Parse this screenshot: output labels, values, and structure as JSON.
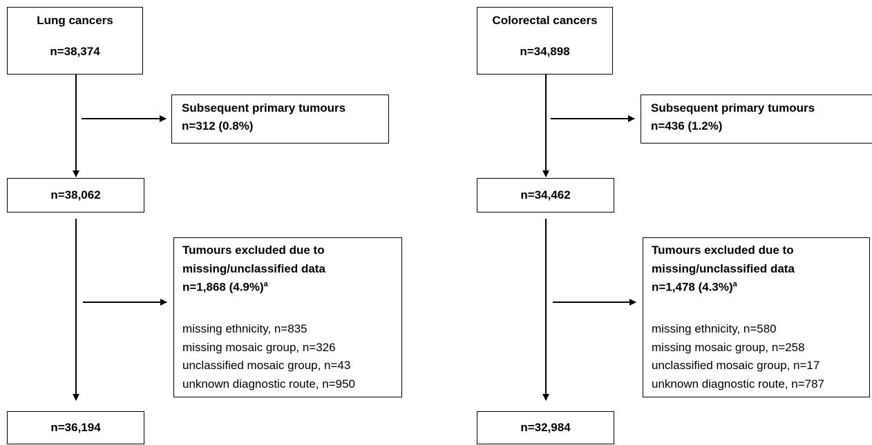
{
  "flows": [
    {
      "start": {
        "title": "Lung cancers",
        "n": "n=38,374"
      },
      "subsequent": {
        "title": "Subsequent primary tumours",
        "n": "n=312 (0.8%)"
      },
      "after_subsequent": "n=38,062",
      "excluded": {
        "title_lines": [
          "Tumours excluded due to",
          "missing/unclassified data"
        ],
        "n": "n=1,868 (4.9%)",
        "note_mark": "a",
        "reasons": [
          "missing ethnicity, n=835",
          "missing mosaic group, n=326",
          "unclassified mosaic group, n=43",
          "unknown diagnostic route, n=950"
        ]
      },
      "final": "n=36,194"
    },
    {
      "start": {
        "title": "Colorectal cancers",
        "n": "n=34,898"
      },
      "subsequent": {
        "title": "Subsequent primary tumours",
        "n": "n=436 (1.2%)"
      },
      "after_subsequent": "n=34,462",
      "excluded": {
        "title_lines": [
          "Tumours excluded due to",
          "missing/unclassified data"
        ],
        "n": "n=1,478 (4.3%)",
        "note_mark": "a",
        "reasons": [
          "missing ethnicity, n=580",
          "missing mosaic group, n=258",
          "unclassified mosaic group, n=17",
          "unknown diagnostic route, n=787"
        ]
      },
      "final": "n=32,984"
    }
  ]
}
